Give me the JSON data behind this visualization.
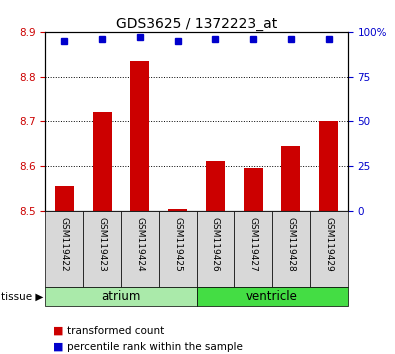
{
  "title": "GDS3625 / 1372223_at",
  "samples": [
    "GSM119422",
    "GSM119423",
    "GSM119424",
    "GSM119425",
    "GSM119426",
    "GSM119427",
    "GSM119428",
    "GSM119429"
  ],
  "transformed_count": [
    8.555,
    8.72,
    8.835,
    8.503,
    8.61,
    8.595,
    8.645,
    8.7
  ],
  "percentile_rank": [
    95,
    96,
    97,
    95,
    96,
    96,
    96,
    96
  ],
  "ylim_left": [
    8.5,
    8.9
  ],
  "ylim_right": [
    0,
    100
  ],
  "yticks_left": [
    8.5,
    8.6,
    8.7,
    8.8,
    8.9
  ],
  "yticks_right": [
    0,
    25,
    50,
    75,
    100
  ],
  "bar_color": "#cc0000",
  "dot_color": "#0000cc",
  "tissue_groups": [
    {
      "label": "atrium",
      "indices": [
        0,
        1,
        2,
        3
      ],
      "color": "#aaeaaa"
    },
    {
      "label": "ventricle",
      "indices": [
        4,
        5,
        6,
        7
      ],
      "color": "#44dd44"
    }
  ],
  "tissue_label": "tissue",
  "legend_bar_label": "transformed count",
  "legend_dot_label": "percentile rank within the sample",
  "grid_color": "#000000",
  "tick_label_color_left": "#cc0000",
  "tick_label_color_right": "#0000cc",
  "sample_box_color": "#d8d8d8"
}
